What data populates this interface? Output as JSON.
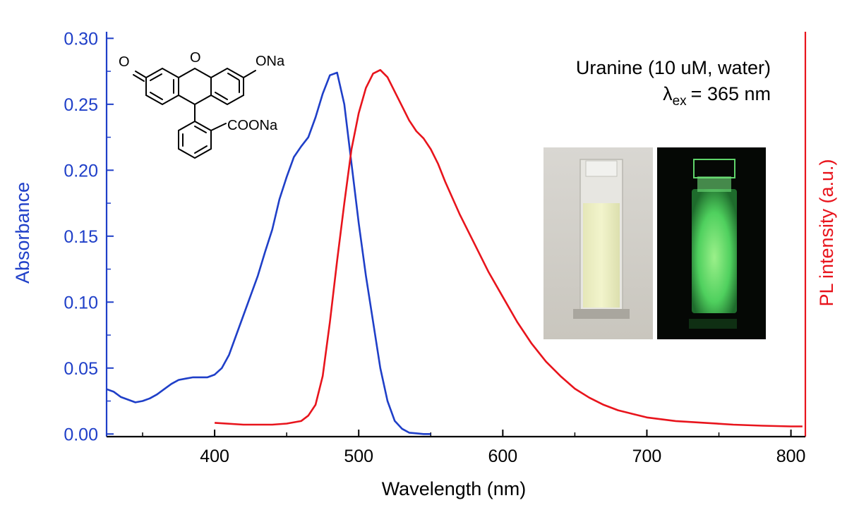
{
  "chart_data": {
    "type": "line",
    "xlabel": "Wavelength (nm)",
    "ylabel_left": "Absorbance",
    "ylabel_right": "PL intensity (a.u.)",
    "xlim": [
      325,
      810
    ],
    "ylim_left": [
      -0.002,
      0.305
    ],
    "ylim_right": [
      0,
      1
    ],
    "x_ticks": [
      400,
      500,
      600,
      700,
      800
    ],
    "x_tick_labels": [
      "400",
      "500",
      "600",
      "700",
      "800"
    ],
    "y_left_ticks": [
      0.0,
      0.05,
      0.1,
      0.15,
      0.2,
      0.25,
      0.3
    ],
    "y_left_tick_labels": [
      "0.00",
      "0.05",
      "0.10",
      "0.15",
      "0.20",
      "0.25",
      "0.30"
    ],
    "grid": false,
    "colors": {
      "absorbance": "#1f3fc8",
      "pl": "#e8141c",
      "axis": "#000000"
    },
    "annotations": {
      "sample_line": "Uranine (10 uM, water)",
      "lambda_symbol": "λ",
      "lambda_subscript": "ex",
      "lambda_value": "= 365 nm"
    },
    "series": [
      {
        "axis": "left",
        "color": "#1f3fc8",
        "x": [
          325,
          330,
          335,
          340,
          345,
          350,
          355,
          360,
          365,
          370,
          375,
          380,
          385,
          390,
          395,
          400,
          405,
          410,
          415,
          420,
          425,
          430,
          435,
          440,
          445,
          450,
          455,
          460,
          465,
          470,
          475,
          480,
          485,
          490,
          495,
          500,
          505,
          510,
          515,
          520,
          525,
          530,
          535,
          540,
          545,
          550
        ],
        "values": [
          0.034,
          0.032,
          0.028,
          0.026,
          0.024,
          0.025,
          0.027,
          0.03,
          0.034,
          0.038,
          0.041,
          0.042,
          0.043,
          0.043,
          0.043,
          0.045,
          0.05,
          0.06,
          0.075,
          0.09,
          0.105,
          0.12,
          0.138,
          0.155,
          0.178,
          0.195,
          0.21,
          0.218,
          0.225,
          0.24,
          0.258,
          0.272,
          0.274,
          0.25,
          0.205,
          0.16,
          0.12,
          0.085,
          0.05,
          0.025,
          0.01,
          0.004,
          0.001,
          0.0005,
          0.0,
          0.0
        ]
      },
      {
        "axis": "right",
        "color": "#e8141c",
        "x": [
          400,
          420,
          440,
          450,
          460,
          465,
          470,
          475,
          480,
          485,
          490,
          495,
          500,
          505,
          510,
          515,
          520,
          525,
          530,
          535,
          540,
          545,
          550,
          555,
          560,
          570,
          580,
          590,
          600,
          610,
          620,
          630,
          640,
          650,
          660,
          670,
          680,
          690,
          700,
          720,
          740,
          760,
          780,
          800,
          808
        ],
        "values": [
          0.02,
          0.015,
          0.015,
          0.018,
          0.025,
          0.04,
          0.07,
          0.15,
          0.3,
          0.47,
          0.63,
          0.78,
          0.88,
          0.95,
          0.99,
          1.0,
          0.98,
          0.94,
          0.9,
          0.86,
          0.83,
          0.81,
          0.78,
          0.74,
          0.69,
          0.6,
          0.52,
          0.44,
          0.37,
          0.3,
          0.24,
          0.19,
          0.15,
          0.115,
          0.09,
          0.07,
          0.055,
          0.045,
          0.035,
          0.025,
          0.02,
          0.015,
          0.012,
          0.01,
          0.01
        ]
      }
    ]
  },
  "structure": {
    "labels": [
      "O",
      "O",
      "ONa",
      "COONa"
    ]
  }
}
